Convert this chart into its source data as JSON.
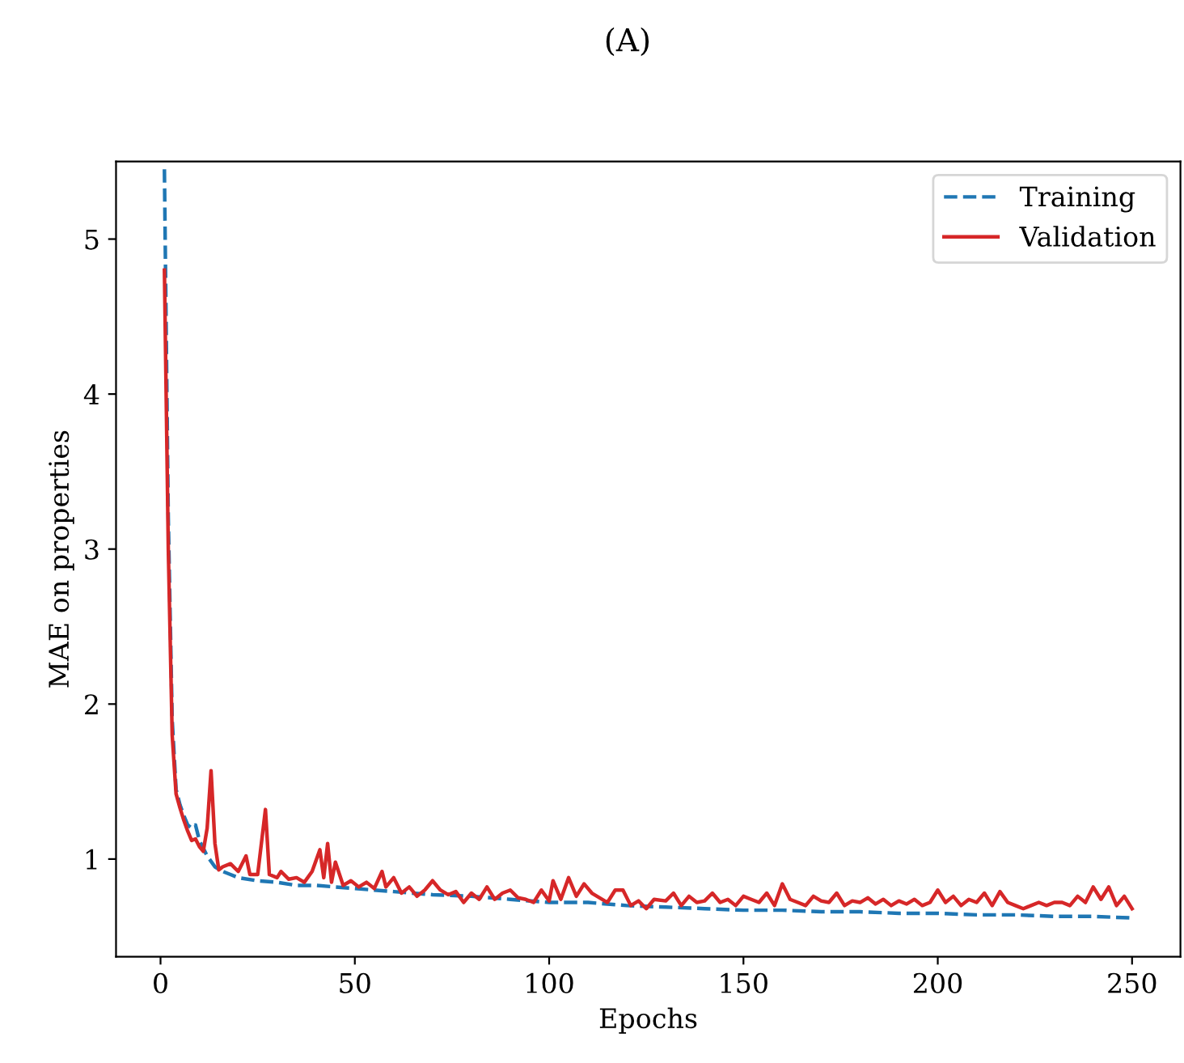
{
  "chart_data": {
    "type": "line",
    "title": "(A)",
    "xlabel": "Epochs",
    "ylabel": "MAE on properties",
    "xlim": [
      -11.45,
      262.45
    ],
    "ylim": [
      0.37,
      5.5
    ],
    "xticks": [
      0,
      50,
      100,
      150,
      200,
      250
    ],
    "yticks": [
      1,
      2,
      3,
      4,
      5
    ],
    "grid": false,
    "legend": "top right",
    "marker": "none",
    "series": [
      {
        "name": "Training",
        "color": "#1f77b4",
        "line_style": "dashed",
        "x": [
          1,
          2,
          3,
          4,
          5,
          6,
          7,
          8,
          9,
          10,
          12,
          14,
          16,
          18,
          20,
          25,
          30,
          35,
          40,
          45,
          50,
          60,
          70,
          80,
          90,
          100,
          110,
          120,
          130,
          140,
          150,
          160,
          170,
          180,
          190,
          200,
          210,
          220,
          230,
          240,
          250
        ],
        "values": [
          5.45,
          3.2,
          1.9,
          1.45,
          1.35,
          1.28,
          1.22,
          1.2,
          1.22,
          1.12,
          1.02,
          0.95,
          0.92,
          0.9,
          0.88,
          0.86,
          0.85,
          0.83,
          0.83,
          0.82,
          0.81,
          0.79,
          0.77,
          0.76,
          0.74,
          0.72,
          0.72,
          0.7,
          0.69,
          0.68,
          0.67,
          0.67,
          0.66,
          0.66,
          0.65,
          0.65,
          0.64,
          0.64,
          0.63,
          0.63,
          0.62
        ]
      },
      {
        "name": "Validation",
        "color": "#d62728",
        "line_style": "solid",
        "x": [
          1,
          2,
          3,
          4,
          5,
          6,
          7,
          8,
          9,
          10,
          11,
          12,
          13,
          14,
          15,
          16,
          18,
          20,
          22,
          23,
          25,
          27,
          28,
          30,
          31,
          33,
          35,
          37,
          39,
          41,
          42,
          43,
          44,
          45,
          47,
          49,
          51,
          53,
          55,
          57,
          58,
          60,
          62,
          64,
          66,
          68,
          70,
          72,
          74,
          76,
          78,
          80,
          82,
          84,
          86,
          88,
          90,
          92,
          94,
          96,
          98,
          100,
          101,
          103,
          105,
          107,
          109,
          111,
          113,
          115,
          117,
          119,
          121,
          123,
          125,
          127,
          130,
          132,
          134,
          136,
          138,
          140,
          142,
          144,
          146,
          148,
          150,
          152,
          154,
          156,
          158,
          160,
          162,
          164,
          166,
          168,
          170,
          172,
          174,
          176,
          178,
          180,
          182,
          184,
          186,
          188,
          190,
          192,
          194,
          196,
          198,
          200,
          202,
          204,
          206,
          208,
          210,
          212,
          214,
          216,
          218,
          220,
          222,
          224,
          226,
          228,
          230,
          232,
          234,
          236,
          238,
          240,
          242,
          244,
          246,
          248,
          250
        ],
        "values": [
          4.8,
          3.0,
          1.8,
          1.42,
          1.33,
          1.25,
          1.18,
          1.12,
          1.13,
          1.08,
          1.05,
          1.2,
          1.57,
          1.1,
          0.93,
          0.95,
          0.97,
          0.92,
          1.02,
          0.9,
          0.9,
          1.32,
          0.9,
          0.88,
          0.92,
          0.87,
          0.88,
          0.85,
          0.92,
          1.06,
          0.88,
          1.1,
          0.85,
          0.98,
          0.83,
          0.86,
          0.82,
          0.85,
          0.81,
          0.92,
          0.82,
          0.88,
          0.78,
          0.82,
          0.76,
          0.8,
          0.86,
          0.8,
          0.77,
          0.79,
          0.72,
          0.78,
          0.74,
          0.82,
          0.74,
          0.78,
          0.8,
          0.75,
          0.74,
          0.72,
          0.8,
          0.73,
          0.86,
          0.74,
          0.88,
          0.76,
          0.84,
          0.78,
          0.75,
          0.72,
          0.8,
          0.8,
          0.7,
          0.73,
          0.68,
          0.74,
          0.73,
          0.78,
          0.7,
          0.76,
          0.72,
          0.73,
          0.78,
          0.72,
          0.74,
          0.7,
          0.76,
          0.74,
          0.72,
          0.78,
          0.7,
          0.84,
          0.74,
          0.72,
          0.7,
          0.76,
          0.73,
          0.72,
          0.78,
          0.7,
          0.73,
          0.72,
          0.75,
          0.71,
          0.74,
          0.7,
          0.73,
          0.71,
          0.74,
          0.7,
          0.72,
          0.8,
          0.72,
          0.76,
          0.7,
          0.74,
          0.72,
          0.78,
          0.7,
          0.79,
          0.72,
          0.7,
          0.68,
          0.7,
          0.72,
          0.7,
          0.72,
          0.72,
          0.7,
          0.76,
          0.72,
          0.82,
          0.74,
          0.82,
          0.7,
          0.76,
          0.68
        ]
      }
    ]
  }
}
